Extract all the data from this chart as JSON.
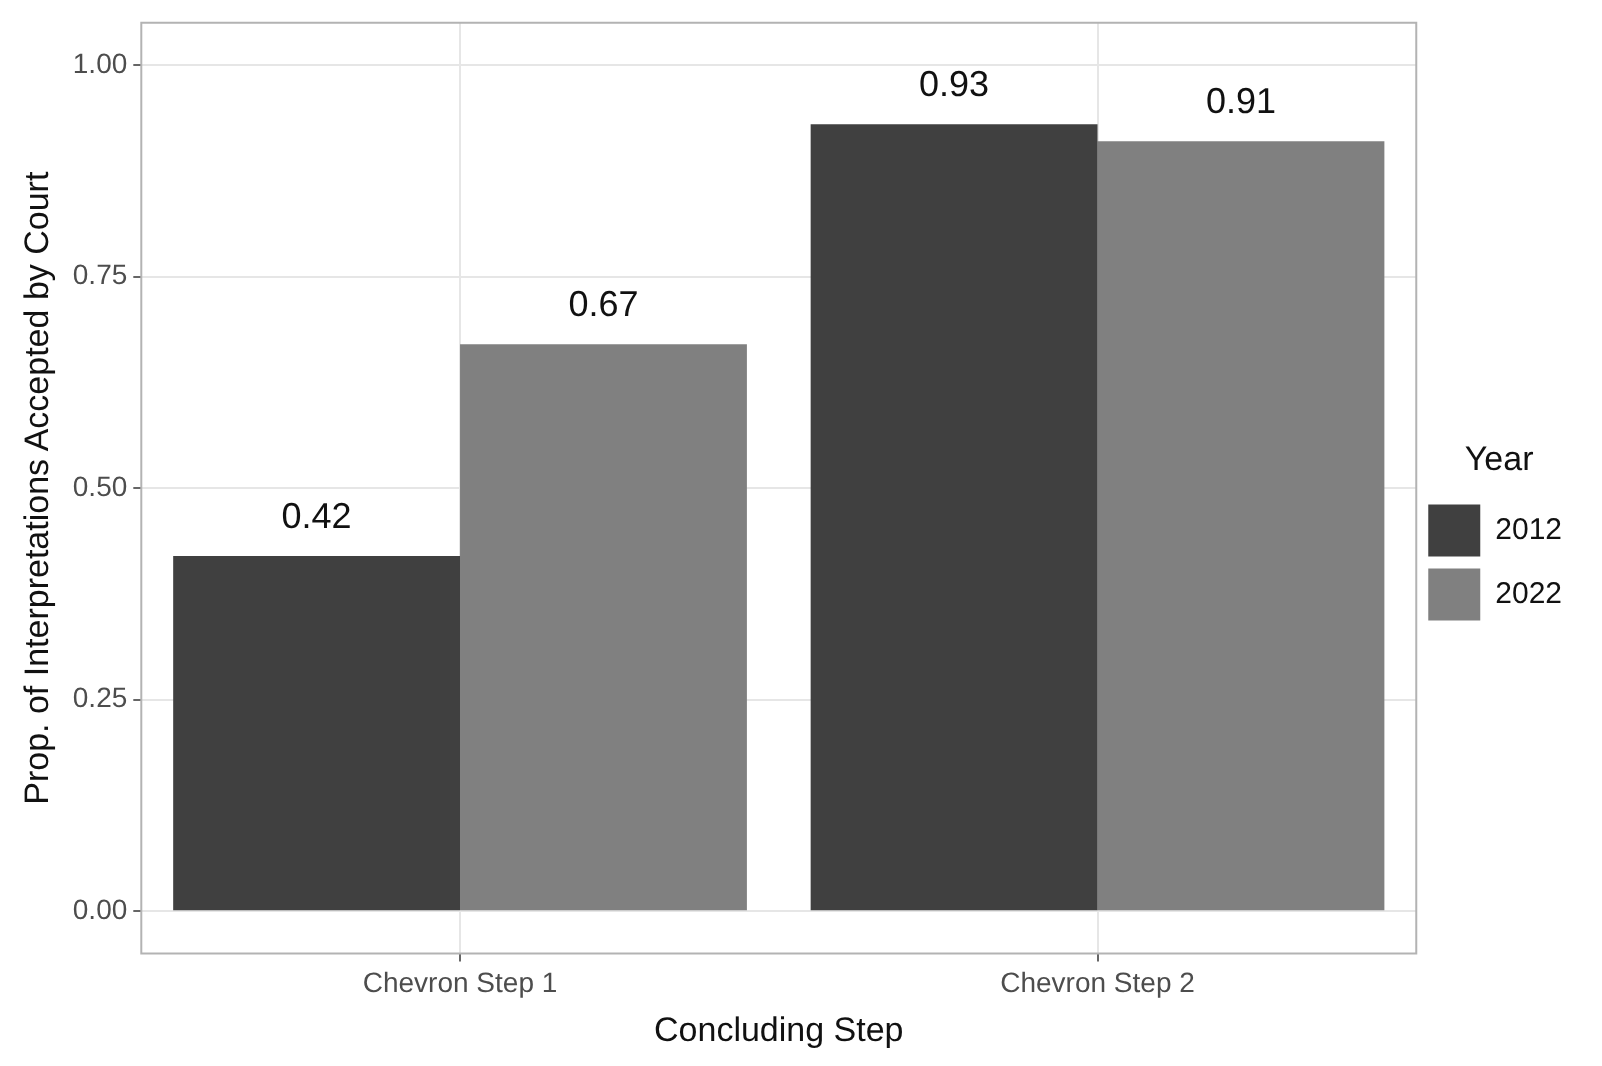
{
  "chart_data": {
    "type": "bar",
    "xlabel": "Concluding Step",
    "ylabel": "Prop. of Interpretations Accepted by Court",
    "categories": [
      "Chevron Step 1",
      "Chevron Step 2"
    ],
    "series": [
      {
        "name": "2012",
        "color": "#404040",
        "values": [
          0.42,
          0.93
        ]
      },
      {
        "name": "2022",
        "color": "#808080",
        "values": [
          0.67,
          0.91
        ]
      }
    ],
    "legend_title": "Year",
    "legend": "right",
    "ylim": [
      -0.05,
      1.05
    ],
    "yticks": [
      {
        "value": 0,
        "label": "0.00"
      },
      {
        "value": 0.25,
        "label": "0.25"
      },
      {
        "value": 0.5,
        "label": "0.50"
      },
      {
        "value": 0.75,
        "label": "0.75"
      },
      {
        "value": 1,
        "label": "1.00"
      }
    ],
    "grid": true,
    "data_labels": true
  }
}
